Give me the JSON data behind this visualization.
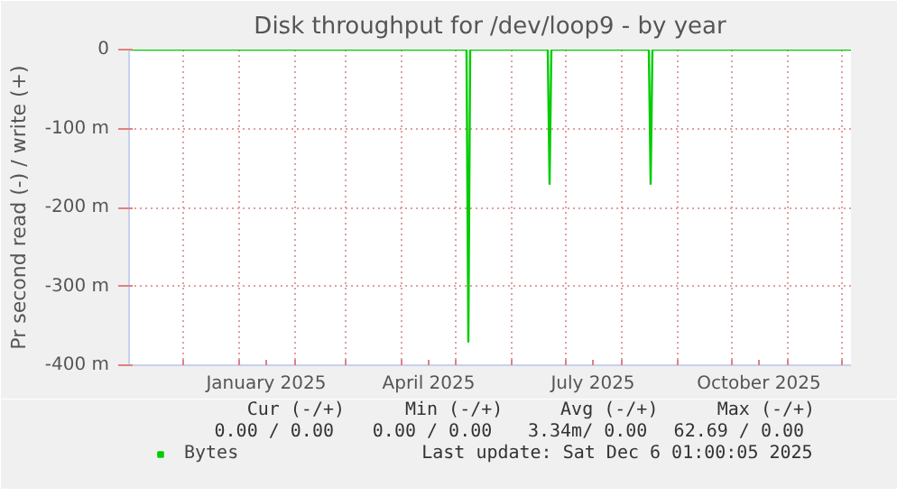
{
  "chart_data": {
    "type": "line",
    "title": "Disk throughput for /dev/loop9 - by year",
    "ylabel": "Pr second read (-) / write (+)",
    "x": [
      "2024-11-01",
      "2025-05-07",
      "2025-05-08",
      "2025-05-09",
      "2025-06-21",
      "2025-06-22",
      "2025-06-23",
      "2025-08-16",
      "2025-08-17",
      "2025-08-18",
      "2025-12-06"
    ],
    "series": [
      {
        "name": "Bytes",
        "color": "#00cc00",
        "values": [
          0,
          0,
          -370,
          0,
          0,
          -170,
          0,
          0,
          -170,
          0,
          0
        ]
      }
    ],
    "xlim": [
      "2024-11-01",
      "2025-12-06"
    ],
    "xticks": [
      {
        "value": "2024-12-01",
        "label": null
      },
      {
        "value": "2025-01-01",
        "label": null
      },
      {
        "value": "2025-01-16",
        "label": "January 2025"
      },
      {
        "value": "2025-02-01",
        "label": null
      },
      {
        "value": "2025-03-01",
        "label": null
      },
      {
        "value": "2025-04-01",
        "label": null
      },
      {
        "value": "2025-04-16",
        "label": "April 2025"
      },
      {
        "value": "2025-05-01",
        "label": null
      },
      {
        "value": "2025-06-01",
        "label": null
      },
      {
        "value": "2025-07-01",
        "label": null
      },
      {
        "value": "2025-07-16",
        "label": "July 2025"
      },
      {
        "value": "2025-08-01",
        "label": null
      },
      {
        "value": "2025-09-01",
        "label": null
      },
      {
        "value": "2025-10-01",
        "label": null
      },
      {
        "value": "2025-10-16",
        "label": "October 2025"
      },
      {
        "value": "2025-11-01",
        "label": null
      },
      {
        "value": "2025-12-01",
        "label": null
      }
    ],
    "ylim": [
      -400,
      0
    ],
    "yticks": [
      {
        "value": -400,
        "label": "-400 m"
      },
      {
        "value": -300,
        "label": "-300 m"
      },
      {
        "value": -200,
        "label": "-200 m"
      },
      {
        "value": -100,
        "label": "-100 m"
      },
      0
    ],
    "grid": true,
    "legend": "bottom",
    "marker": "none",
    "line_style": "solid",
    "annotations": [
      "Cur (-/+)",
      "Min (-/+)",
      "Avg (-/+)",
      "Max (-/+)",
      "0.00 /  0.00",
      "0.00 /  0.00",
      "3.34m/  0.00",
      "62.69 /  0.00",
      "Last update: Sat Dec  6 01:00:05 2025"
    ]
  }
}
